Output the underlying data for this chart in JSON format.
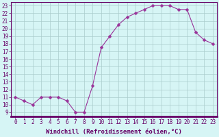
{
  "x": [
    0,
    1,
    2,
    3,
    4,
    5,
    6,
    7,
    8,
    9,
    10,
    11,
    12,
    13,
    14,
    15,
    16,
    17,
    18,
    19,
    20,
    21,
    22,
    23
  ],
  "y": [
    11,
    10.5,
    10,
    11,
    11,
    11,
    10.5,
    9,
    9,
    12.5,
    17.5,
    19,
    20.5,
    21.5,
    22,
    22.5,
    23,
    23,
    23,
    22.5,
    22.5,
    19.5,
    18.5,
    18
  ],
  "line_color": "#993399",
  "marker": "D",
  "marker_size": 2.5,
  "bg_color": "#d6f5f5",
  "grid_color": "#aacccc",
  "xlabel": "Windchill (Refroidissement éolien,°C)",
  "xlabel_fontsize": 6.5,
  "xlim": [
    -0.5,
    23.5
  ],
  "ylim": [
    8.5,
    23.5
  ],
  "yticks": [
    9,
    10,
    11,
    12,
    13,
    14,
    15,
    16,
    17,
    18,
    19,
    20,
    21,
    22,
    23
  ],
  "xticks": [
    0,
    1,
    2,
    3,
    4,
    5,
    6,
    7,
    8,
    9,
    10,
    11,
    12,
    13,
    14,
    15,
    16,
    17,
    18,
    19,
    20,
    21,
    22,
    23
  ],
  "tick_fontsize": 5.5,
  "label_color": "#660066",
  "spine_color": "#660066",
  "linewidth": 0.8
}
